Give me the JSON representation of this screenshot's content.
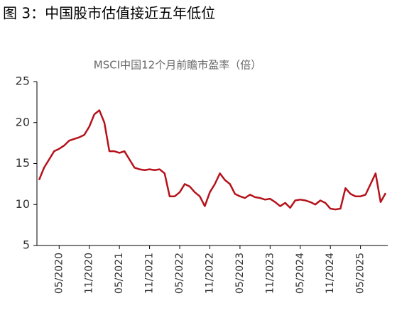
{
  "chart_data": {
    "type": "line",
    "title": "图 3：中国股市估值接近五年低位",
    "subtitle": "MSCI中国12个月前瞻市盈率（倍）",
    "x": [
      "01/2020",
      "02/2020",
      "03/2020",
      "04/2020",
      "05/2020",
      "06/2020",
      "07/2020",
      "08/2020",
      "09/2020",
      "10/2020",
      "11/2020",
      "12/2020",
      "01/2021",
      "02/2021",
      "03/2021",
      "04/2021",
      "05/2021",
      "06/2021",
      "07/2021",
      "08/2021",
      "09/2021",
      "10/2021",
      "11/2021",
      "12/2021",
      "01/2022",
      "02/2022",
      "03/2022",
      "04/2022",
      "05/2022",
      "06/2022",
      "07/2022",
      "08/2022",
      "09/2022",
      "10/2022",
      "11/2022",
      "12/2022",
      "01/2023",
      "02/2023",
      "03/2023",
      "04/2023",
      "05/2023",
      "06/2023",
      "07/2023",
      "08/2023",
      "09/2023",
      "10/2023",
      "11/2023",
      "12/2023",
      "01/2024",
      "02/2024",
      "03/2024",
      "04/2024",
      "05/2024",
      "06/2024",
      "07/2024",
      "08/2024",
      "09/2024",
      "10/2024",
      "11/2024",
      "12/2024",
      "01/2025",
      "02/2025",
      "03/2025",
      "04/2025",
      "05/2025",
      "06/2025",
      "07/2025",
      "08/2025",
      "09/2025",
      "10/2025"
    ],
    "series": [
      {
        "color": "#b5121b",
        "values": [
          13,
          14.5,
          15.5,
          16.5,
          16.8,
          17.2,
          17.8,
          18,
          18.2,
          18.5,
          19.5,
          21,
          21.5,
          20,
          16.5,
          16.5,
          16.3,
          16.5,
          15.5,
          14.5,
          14.3,
          14.2,
          14.3,
          14.2,
          14.3,
          13.8,
          11,
          11,
          11.5,
          12.5,
          12.2,
          11.5,
          11,
          9.8,
          11.5,
          12.5,
          13.8,
          13,
          12.5,
          11.3,
          11,
          10.8,
          11.2,
          10.9,
          10.8,
          10.6,
          10.7,
          10.3,
          9.8,
          10.2,
          9.6,
          10.5,
          10.6,
          10.5,
          10.3,
          10,
          10.5,
          10.2,
          9.5,
          9.4,
          9.5,
          12,
          11.3,
          11,
          11,
          11.2,
          12.5,
          13.8,
          10.3,
          11.4
        ]
      }
    ],
    "xticks": [
      "05/2020",
      "11/2020",
      "05/2021",
      "11/2021",
      "05/2022",
      "11/2022",
      "05/2023",
      "11/2023",
      "05/2024",
      "11/2024",
      "05/2025"
    ],
    "ylim": [
      5,
      25
    ],
    "yticks": [
      5,
      10,
      15,
      20,
      25
    ]
  }
}
